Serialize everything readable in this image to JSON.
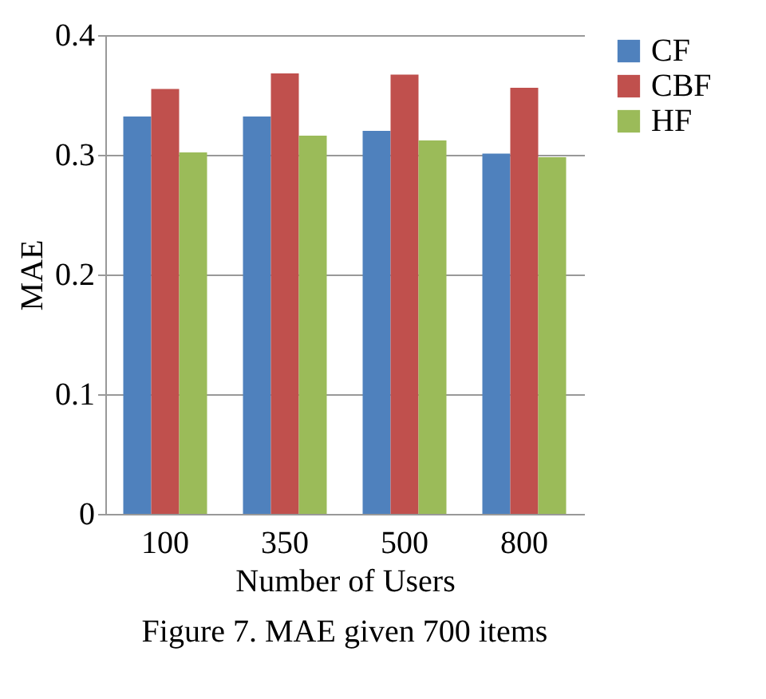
{
  "chart_data": {
    "type": "bar",
    "xlabel": "Number of Users",
    "ylabel": "MAE",
    "categories": [
      "100",
      "350",
      "500",
      "800"
    ],
    "series": [
      {
        "name": "CF",
        "color": "#4f81bd",
        "values": [
          0.332,
          0.332,
          0.32,
          0.301
        ]
      },
      {
        "name": "CBF",
        "color": "#c0504d",
        "values": [
          0.355,
          0.368,
          0.367,
          0.356
        ]
      },
      {
        "name": "HF",
        "color": "#9bbb59",
        "values": [
          0.302,
          0.316,
          0.312,
          0.298
        ]
      }
    ],
    "ylim": [
      0,
      0.4
    ],
    "yticks": [
      0,
      0.1,
      0.2,
      0.3,
      0.4
    ],
    "grid": "y",
    "legend": "right",
    "annotations": [
      "Figure 7. MAE given 700 items"
    ]
  }
}
